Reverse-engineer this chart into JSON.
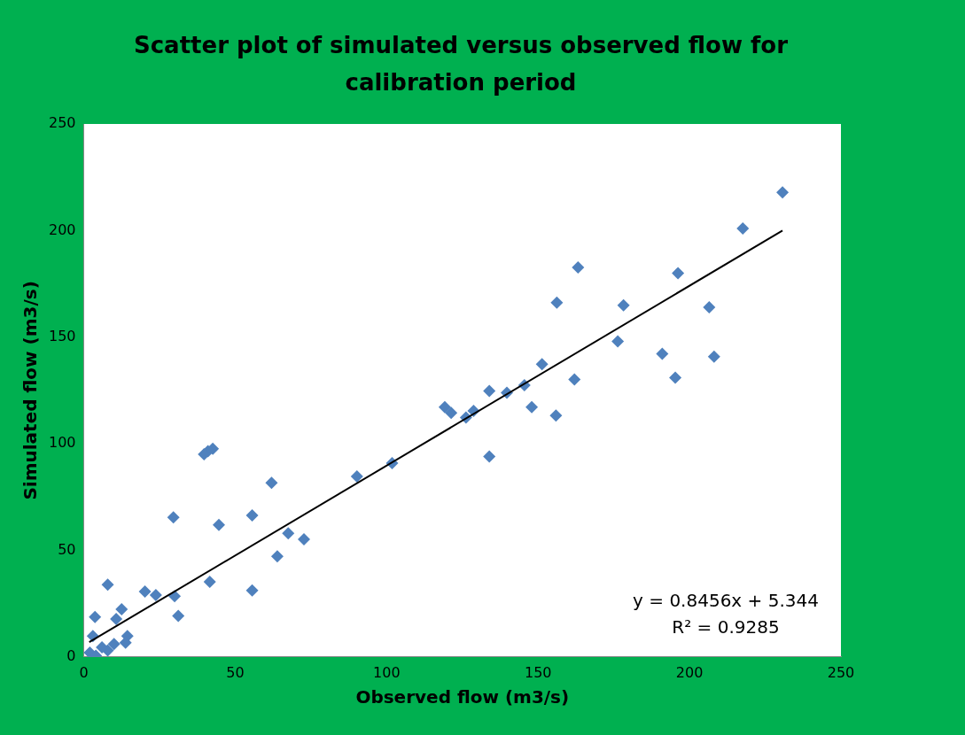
{
  "chart_data": {
    "type": "scatter",
    "title": "Scatter plot of simulated versus observed flow for calibration period",
    "xlabel": "Observed flow (m3/s)",
    "ylabel": "Simulated flow (m3/s)",
    "xlim": [
      0,
      250
    ],
    "xticks": [
      0,
      50,
      100,
      150,
      200,
      250
    ],
    "ylim": [
      0,
      250
    ],
    "yticks": [
      0,
      50,
      100,
      150,
      200,
      250
    ],
    "grid": false,
    "legend": false,
    "marker": "diamond",
    "series": [
      {
        "color": "#4f81bd",
        "x": [
          230.7,
          217.6,
          196.2,
          163.2,
          156.2,
          178.2,
          176.3,
          206.5,
          208.1,
          191,
          195.3,
          162,
          151.3,
          145.5,
          147.9,
          155.9,
          139.7,
          133.9,
          133.9,
          128.7,
          126.2,
          119.2,
          121.3,
          101.8,
          90.2,
          62,
          55.6,
          67.5,
          72.7,
          63.9,
          55.6,
          42.6,
          41,
          39.7,
          44.6,
          29.6,
          41.6,
          30,
          7.9,
          20.2,
          23.8,
          31.2,
          3.7,
          12.5,
          10.7,
          14.4,
          13.8,
          3,
          7.9,
          10,
          6,
          2,
          4
        ],
        "values": [
          217.9,
          201,
          180,
          182.7,
          166.2,
          164.9,
          148,
          164,
          140.8,
          142.2,
          131,
          130.1,
          137.3,
          127.5,
          117.2,
          113.2,
          123.9,
          124.8,
          94,
          115.4,
          112.3,
          117.2,
          114.5,
          90.9,
          84.7,
          81.6,
          66.4,
          58,
          55.2,
          47.2,
          31.2,
          97.6,
          96.5,
          95,
          61.9,
          65.5,
          35.2,
          28.5,
          33.9,
          30.7,
          29,
          19.2,
          18.7,
          22.3,
          17.8,
          9.8,
          6.7,
          9.8,
          3,
          6,
          4.5,
          2,
          0.5
        ]
      },
      {
        "type": "line",
        "color": "#000000",
        "marker": "none",
        "x": [
          1.8,
          230.7
        ],
        "values": [
          6.9,
          200
        ]
      }
    ],
    "annotations": [
      "y = 0.8456x + 5.344",
      "R² = 0.9285"
    ]
  }
}
